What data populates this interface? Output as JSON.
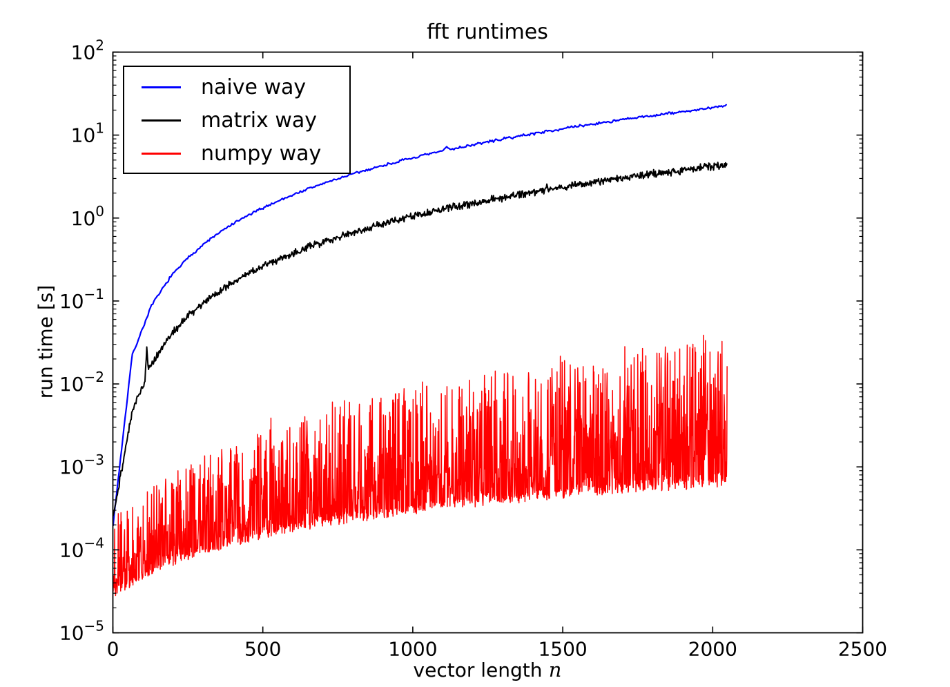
{
  "chart_data": {
    "type": "line",
    "title": "fft runtimes",
    "xlabel": "vector length",
    "xlabel_var": "n",
    "ylabel": "run time [s]",
    "x_scale": "linear",
    "y_scale": "log",
    "xlim": [
      0,
      2500
    ],
    "ylim": [
      1e-05,
      100
    ],
    "ylim_exp": [
      -5,
      2
    ],
    "x_ticks": [
      0,
      500,
      1000,
      1500,
      2000,
      2500
    ],
    "y_tick_exponents": [
      2,
      1,
      0,
      -1,
      -2,
      -3,
      -4,
      -5
    ],
    "y_tick_base": "10",
    "minor_log_multiples": [
      2,
      3,
      4,
      5,
      6,
      7,
      8,
      9
    ],
    "grid": false,
    "legend_position": "upper left",
    "background": "#ffffff",
    "axis_color": "#000000",
    "noise_seed": 7,
    "series": [
      {
        "name": "naive way",
        "color": "#0000ff",
        "line_width": 2.2,
        "model": "anchors",
        "n_range": [
          1,
          2048
        ],
        "step": 4,
        "noise_log10": 0.012,
        "spikes": [
          {
            "n": 1112,
            "factor": 1.1,
            "width": 14
          }
        ],
        "anchors": [
          [
            1,
            0.000205
          ],
          [
            64,
            0.0219
          ],
          [
            128,
            0.087
          ],
          [
            192,
            0.1956
          ],
          [
            256,
            0.3474
          ],
          [
            320,
            0.5428
          ],
          [
            384,
            0.7816
          ],
          [
            448,
            1.064
          ],
          [
            512,
            1.389
          ],
          [
            576,
            1.758
          ],
          [
            640,
            2.171
          ],
          [
            704,
            2.627
          ],
          [
            768,
            3.126
          ],
          [
            832,
            3.669
          ],
          [
            896,
            4.255
          ],
          [
            960,
            4.885
          ],
          [
            1024,
            5.558
          ],
          [
            1088,
            6.275
          ],
          [
            1152,
            7.034
          ],
          [
            1216,
            7.838
          ],
          [
            1280,
            8.685
          ],
          [
            1344,
            9.575
          ],
          [
            1408,
            10.51
          ],
          [
            1472,
            11.49
          ],
          [
            1536,
            12.51
          ],
          [
            1600,
            13.57
          ],
          [
            1664,
            14.68
          ],
          [
            1728,
            15.83
          ],
          [
            1792,
            17.02
          ],
          [
            1856,
            18.26
          ],
          [
            1920,
            19.54
          ],
          [
            1984,
            20.87
          ],
          [
            2048,
            22.9
          ]
        ]
      },
      {
        "name": "matrix way",
        "color": "#000000",
        "line_width": 2.0,
        "model": "anchors",
        "n_range": [
          1,
          2048
        ],
        "step": 2,
        "noise_log10": 0.034,
        "spikes": [
          {
            "n": 113,
            "factor": 2.2,
            "width": 6
          },
          {
            "n": 1447,
            "factor": 1.22,
            "width": 5
          }
        ],
        "anchors": [
          [
            1,
            0.000255
          ],
          [
            64,
            0.00455
          ],
          [
            128,
            0.01745
          ],
          [
            192,
            0.03896
          ],
          [
            256,
            0.06906
          ],
          [
            320,
            0.1078
          ],
          [
            384,
            0.1551
          ],
          [
            448,
            0.211
          ],
          [
            512,
            0.2755
          ],
          [
            576,
            0.3486
          ],
          [
            640,
            0.4303
          ],
          [
            704,
            0.5206
          ],
          [
            768,
            0.6194
          ],
          [
            832,
            0.7269
          ],
          [
            896,
            0.843
          ],
          [
            960,
            0.9677
          ],
          [
            1024,
            1.101
          ],
          [
            1088,
            1.243
          ],
          [
            1152,
            1.393
          ],
          [
            1216,
            1.552
          ],
          [
            1280,
            1.72
          ],
          [
            1344,
            1.896
          ],
          [
            1408,
            2.081
          ],
          [
            1472,
            2.275
          ],
          [
            1536,
            2.477
          ],
          [
            1600,
            2.687
          ],
          [
            1664,
            2.907
          ],
          [
            1728,
            3.135
          ],
          [
            1792,
            3.371
          ],
          [
            1856,
            3.616
          ],
          [
            1920,
            3.87
          ],
          [
            1984,
            4.132
          ],
          [
            2048,
            4.45
          ]
        ]
      },
      {
        "name": "numpy way",
        "color": "#ff0000",
        "line_width": 1.5,
        "model": "noisy_band",
        "n_range": [
          1,
          2048
        ],
        "step": 1,
        "dist_power": 2.6,
        "jitter_log10": 0.13,
        "min_value": 2.8e-05,
        "bottom_env": [
          [
            1,
            3e-05
          ],
          [
            128,
            5.5e-05
          ],
          [
            256,
            8.7e-05
          ],
          [
            384,
            0.000122
          ],
          [
            512,
            0.000159
          ],
          [
            640,
            0.000197
          ],
          [
            768,
            0.000236
          ],
          [
            896,
            0.000276
          ],
          [
            1024,
            0.000317
          ],
          [
            1152,
            0.000358
          ],
          [
            1280,
            0.0004
          ],
          [
            1408,
            0.000442
          ],
          [
            1536,
            0.000485
          ],
          [
            1664,
            0.000528
          ],
          [
            1792,
            0.000572
          ],
          [
            1920,
            0.000616
          ],
          [
            2048,
            0.000661
          ]
        ],
        "top_mult": [
          [
            1,
            8
          ],
          [
            512,
            20.5
          ],
          [
            1024,
            33
          ],
          [
            1536,
            45.5
          ],
          [
            2048,
            58
          ]
        ]
      }
    ]
  }
}
